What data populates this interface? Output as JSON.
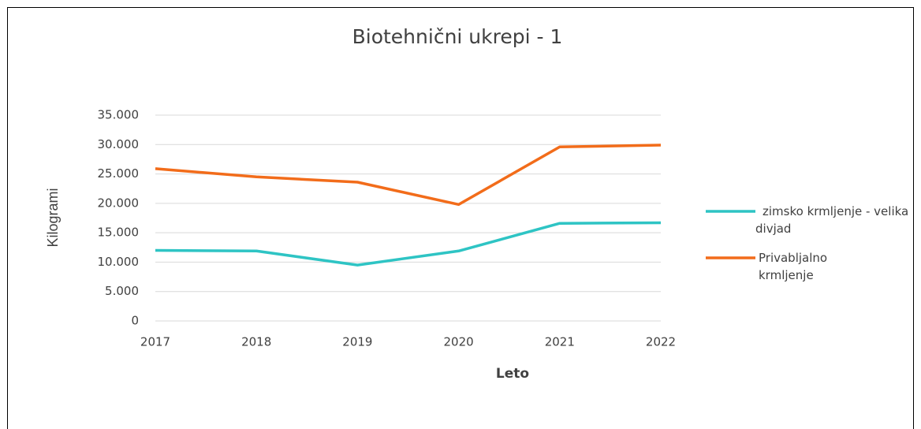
{
  "chart_data": {
    "type": "line",
    "title": "Biotehnični ukrepi - 1",
    "x_label": "Leto",
    "y_label": "Kilogrami",
    "categories": [
      "2017",
      "2018",
      "2019",
      "2020",
      "2021",
      "2022"
    ],
    "series": [
      {
        "name": "zimsko krmljenje - velika divjad",
        "color": "#2ec4c4",
        "values": [
          12000,
          11900,
          9500,
          11900,
          16600,
          16700
        ]
      },
      {
        "name": "Privabljalno krmljenje",
        "color": "#f26c1a",
        "values": [
          25900,
          24500,
          23600,
          19800,
          29600,
          29900
        ]
      }
    ],
    "ylim": [
      0,
      35000
    ],
    "yticks": [
      0,
      {
        "value": 5000,
        "label": "5.000"
      },
      {
        "value": 10000,
        "label": "10.000"
      },
      {
        "value": 15000,
        "label": "15.000"
      },
      {
        "value": 20000,
        "label": "20.000"
      },
      {
        "value": 25000,
        "label": "25.000"
      },
      {
        "value": 30000,
        "label": "30.000"
      },
      {
        "value": 35000,
        "label": "35.000"
      }
    ],
    "grid": true,
    "legend": "right"
  }
}
